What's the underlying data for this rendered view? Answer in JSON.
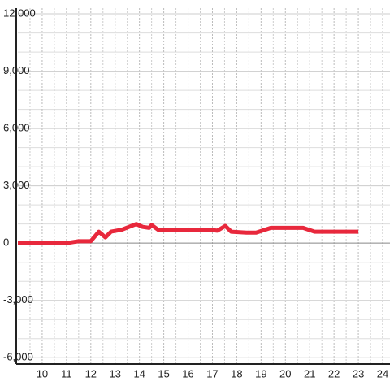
{
  "chart_data": {
    "type": "line",
    "xlim": [
      9,
      24.3
    ],
    "ylim": [
      -6330,
      12300
    ],
    "xticks": [
      10,
      11,
      12,
      13,
      14,
      15,
      16,
      17,
      18,
      19,
      20,
      21,
      22,
      23,
      24
    ],
    "x_minor_ticks": [
      9.5,
      10.5,
      11.5,
      12.5,
      13.5,
      14.5,
      15.5,
      16.5,
      17.5,
      18.5,
      19.5,
      20.5,
      21.5,
      22.5,
      23.5
    ],
    "yticks": [
      {
        "value": -6000,
        "label": "-6,000"
      },
      {
        "value": -3000,
        "label": "-3,000"
      },
      0,
      {
        "value": 3000,
        "label": "3,000"
      },
      {
        "value": 6000,
        "label": "6,000"
      },
      {
        "value": 9000,
        "label": "9,000"
      },
      {
        "value": 12000,
        "label": "12,000"
      }
    ],
    "y_minor_ticks": [
      -5000,
      -4000,
      -2000,
      -1000,
      1000,
      2000,
      4000,
      5000,
      7000,
      8000,
      10000,
      11000
    ],
    "grid": true,
    "series": [
      {
        "color": "#e8283c",
        "x": [
          9,
          11,
          11.5,
          11.8,
          12.0,
          12.33,
          12.6,
          12.83,
          13.27,
          13.87,
          14.13,
          14.4,
          14.5,
          14.77,
          16.9,
          17.2,
          17.53,
          17.77,
          18.4,
          18.8,
          19.4,
          20.73,
          21.2,
          23
        ],
        "values": [
          0,
          0,
          100,
          100,
          100,
          600,
          300,
          600,
          700,
          1000,
          850,
          800,
          950,
          700,
          700,
          650,
          900,
          600,
          550,
          550,
          800,
          800,
          600,
          600
        ]
      }
    ]
  }
}
